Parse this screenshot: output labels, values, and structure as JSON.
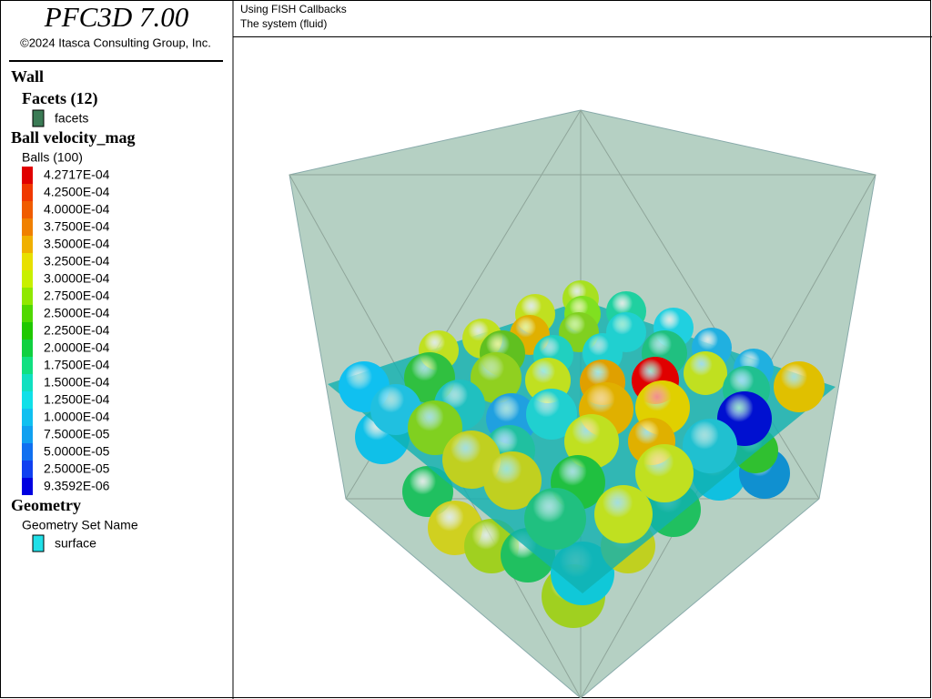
{
  "header": {
    "title": "PFC3D 7.00",
    "copyright": "©2024 Itasca Consulting Group, Inc."
  },
  "view": {
    "lines": [
      "Using FISH Callbacks",
      "The system (fluid)"
    ]
  },
  "wall": {
    "heading": "Wall",
    "facets_heading": "Facets (12)",
    "item": {
      "label": "facets",
      "color": "#3b7b55"
    }
  },
  "ball": {
    "heading": "Ball velocity_mag",
    "subheading": "Balls (100)",
    "scale": [
      {
        "label": "4.2717E-04",
        "color": "#e00000"
      },
      {
        "label": "4.2500E-04",
        "color": "#f03800"
      },
      {
        "label": "4.0000E-04",
        "color": "#f05c00"
      },
      {
        "label": "3.7500E-04",
        "color": "#f08000"
      },
      {
        "label": "3.5000E-04",
        "color": "#f0b000"
      },
      {
        "label": "3.2500E-04",
        "color": "#e8e000"
      },
      {
        "label": "3.0000E-04",
        "color": "#c8f000"
      },
      {
        "label": "2.7500E-04",
        "color": "#90e800"
      },
      {
        "label": "2.5000E-04",
        "color": "#50d800"
      },
      {
        "label": "2.2500E-04",
        "color": "#20c800"
      },
      {
        "label": "2.0000E-04",
        "color": "#10d040"
      },
      {
        "label": "1.7500E-04",
        "color": "#10e080"
      },
      {
        "label": "1.5000E-04",
        "color": "#10e0c0"
      },
      {
        "label": "1.2500E-04",
        "color": "#10e0e8"
      },
      {
        "label": "1.0000E-04",
        "color": "#10c0f0"
      },
      {
        "label": "7.5000E-05",
        "color": "#10a0f0"
      },
      {
        "label": "5.0000E-05",
        "color": "#1070f0"
      },
      {
        "label": "2.5000E-05",
        "color": "#1040f0"
      },
      {
        "label": "9.3592E-06",
        "color": "#0000e0"
      }
    ]
  },
  "geometry": {
    "heading": "Geometry",
    "subheading": "Geometry Set Name",
    "item": {
      "label": "surface",
      "color": "#20e0e8"
    }
  }
}
